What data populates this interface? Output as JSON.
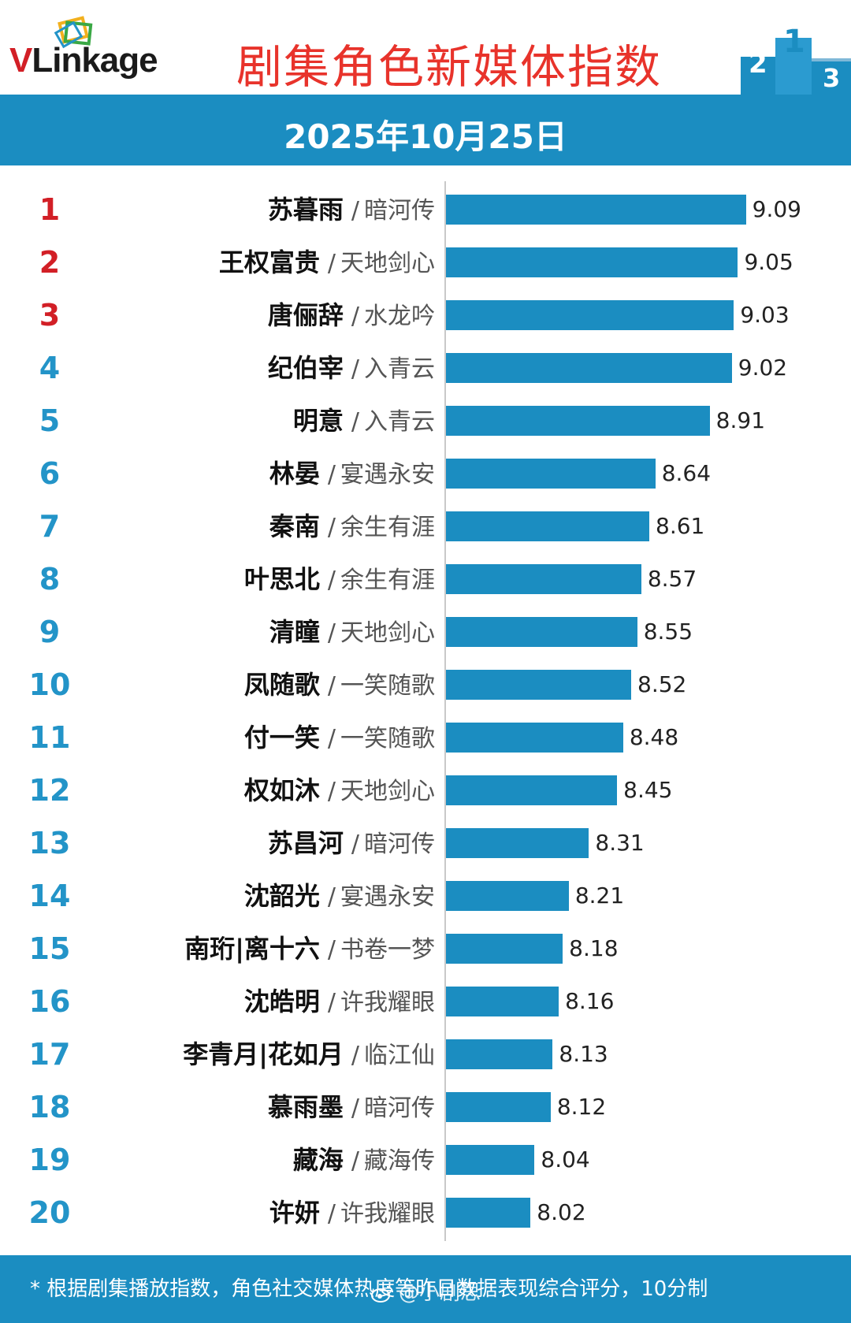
{
  "brand": {
    "logo_text_v": "V",
    "logo_text_rest": "Linkage"
  },
  "title": "剧集角色新媒体指数",
  "date": "2025年10月25日",
  "footnote": "* 根据剧集播放指数，角色社交媒体热度等昨日数据表现综合评分，10分制",
  "watermark": "@小剧思",
  "colors": {
    "accent": "#1b8dc1",
    "title_red": "#e8332b",
    "rank_red": "#d21f26",
    "rank_blue": "#2394c8"
  },
  "icons": {
    "logo": "vlinkage-logo-icon",
    "podium": "podium-icon",
    "weibo": "weibo-icon"
  },
  "chart_data": {
    "type": "bar",
    "orientation": "horizontal",
    "title": "剧集角色新媒体指数",
    "subtitle": "2025年10月25日",
    "xlim": [
      7.6,
      9.15
    ],
    "grid": false,
    "rows": [
      {
        "rank": "1",
        "name": "苏暮雨",
        "drama": "暗河传",
        "value": 9.09,
        "label": "9.09"
      },
      {
        "rank": "2",
        "name": "王权富贵",
        "drama": "天地剑心",
        "value": 9.05,
        "label": "9.05"
      },
      {
        "rank": "3",
        "name": "唐俪辞",
        "drama": "水龙吟",
        "value": 9.03,
        "label": "9.03"
      },
      {
        "rank": "4",
        "name": "纪伯宰",
        "drama": "入青云",
        "value": 9.02,
        "label": "9.02"
      },
      {
        "rank": "5",
        "name": "明意",
        "drama": "入青云",
        "value": 8.91,
        "label": "8.91"
      },
      {
        "rank": "6",
        "name": "林晏",
        "drama": "宴遇永安",
        "value": 8.64,
        "label": "8.64"
      },
      {
        "rank": "7",
        "name": "秦南",
        "drama": "余生有涯",
        "value": 8.61,
        "label": "8.61"
      },
      {
        "rank": "8",
        "name": "叶思北",
        "drama": "余生有涯",
        "value": 8.57,
        "label": "8.57"
      },
      {
        "rank": "9",
        "name": "清瞳",
        "drama": "天地剑心",
        "value": 8.55,
        "label": "8.55"
      },
      {
        "rank": "10",
        "name": "凤随歌",
        "drama": "一笑随歌",
        "value": 8.52,
        "label": "8.52"
      },
      {
        "rank": "11",
        "name": "付一笑",
        "drama": "一笑随歌",
        "value": 8.48,
        "label": "8.48"
      },
      {
        "rank": "12",
        "name": "权如沐",
        "drama": "天地剑心",
        "value": 8.45,
        "label": "8.45"
      },
      {
        "rank": "13",
        "name": "苏昌河",
        "drama": "暗河传",
        "value": 8.31,
        "label": "8.31"
      },
      {
        "rank": "14",
        "name": "沈韶光",
        "drama": "宴遇永安",
        "value": 8.21,
        "label": "8.21"
      },
      {
        "rank": "15",
        "name": "南珩|离十六",
        "drama": "书卷一梦",
        "value": 8.18,
        "label": "8.18"
      },
      {
        "rank": "16",
        "name": "沈皓明",
        "drama": "许我耀眼",
        "value": 8.16,
        "label": "8.16"
      },
      {
        "rank": "17",
        "name": "李青月|花如月",
        "drama": "临江仙",
        "value": 8.13,
        "label": "8.13"
      },
      {
        "rank": "18",
        "name": "慕雨墨",
        "drama": "暗河传",
        "value": 8.12,
        "label": "8.12"
      },
      {
        "rank": "19",
        "name": "藏海",
        "drama": "藏海传",
        "value": 8.04,
        "label": "8.04"
      },
      {
        "rank": "20",
        "name": "许妍",
        "drama": "许我耀眼",
        "value": 8.02,
        "label": "8.02"
      }
    ]
  }
}
